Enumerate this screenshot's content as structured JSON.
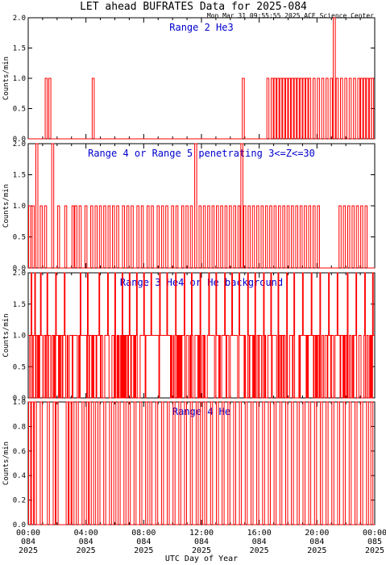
{
  "title": "LET ahead BUFRATES Data for 2025-084",
  "timestamp": "Mon Mar 31 09:55:55 2025 ACE Science Center",
  "xlabel": "UTC Day of Year",
  "colors": {
    "trace": "#ff0000",
    "label": "#0000cc",
    "axis": "#000000"
  },
  "x_ticks": [
    [
      "00:00",
      "084",
      "2025"
    ],
    [
      "04:00",
      "084",
      "2025"
    ],
    [
      "08:00",
      "084",
      "2025"
    ],
    [
      "12:00",
      "084",
      "2025"
    ],
    [
      "16:00",
      "084",
      "2025"
    ],
    [
      "20:00",
      "084",
      "2025"
    ],
    [
      "00:00",
      "085",
      "2025"
    ]
  ],
  "chart_data": [
    {
      "type": "line",
      "title": "Range 2 He3",
      "ylabel": "Counts/min",
      "ylim": [
        0,
        2.0
      ],
      "yticks": [
        "0.0",
        "0.5",
        "1.0",
        "1.5",
        "2.0"
      ],
      "xlim_hours": [
        0,
        24
      ],
      "nonzero": [
        [
          1.25,
          1
        ],
        [
          1.5,
          1
        ],
        [
          4.5,
          1
        ],
        [
          14.9,
          1
        ],
        [
          16.6,
          1
        ],
        [
          16.9,
          1
        ],
        [
          17.1,
          1
        ],
        [
          17.3,
          1
        ],
        [
          17.5,
          1
        ],
        [
          17.7,
          1
        ],
        [
          17.9,
          1
        ],
        [
          18.1,
          1
        ],
        [
          18.3,
          1
        ],
        [
          18.5,
          1
        ],
        [
          18.7,
          1
        ],
        [
          18.9,
          1
        ],
        [
          19.1,
          1
        ],
        [
          19.3,
          1
        ],
        [
          19.5,
          1
        ],
        [
          19.8,
          1
        ],
        [
          20.1,
          1
        ],
        [
          20.4,
          1
        ],
        [
          20.7,
          1
        ],
        [
          21.0,
          1
        ],
        [
          21.2,
          2
        ],
        [
          21.4,
          1
        ],
        [
          21.7,
          1
        ],
        [
          22.0,
          1
        ],
        [
          22.3,
          1
        ],
        [
          22.6,
          1
        ],
        [
          22.9,
          1
        ],
        [
          23.1,
          1
        ],
        [
          23.3,
          1
        ],
        [
          23.5,
          1
        ],
        [
          23.7,
          1
        ],
        [
          23.85,
          1
        ]
      ]
    },
    {
      "type": "line",
      "title": "Range 4 or Range 5 penetrating 3<=Z<=30",
      "ylabel": "Counts/min",
      "ylim": [
        0,
        2.0
      ],
      "yticks": [
        "0.0",
        "0.5",
        "1.0",
        "1.5",
        "2.0"
      ],
      "xlim_hours": [
        0,
        24
      ],
      "nonzero": [
        [
          0.1,
          1
        ],
        [
          0.35,
          1
        ],
        [
          0.6,
          2
        ],
        [
          0.9,
          1
        ],
        [
          1.2,
          1
        ],
        [
          1.7,
          2
        ],
        [
          2.1,
          1
        ],
        [
          2.6,
          1
        ],
        [
          3.1,
          1
        ],
        [
          3.3,
          1
        ],
        [
          3.6,
          1
        ],
        [
          4.0,
          1
        ],
        [
          4.4,
          1
        ],
        [
          4.7,
          1
        ],
        [
          5.0,
          1
        ],
        [
          5.3,
          1
        ],
        [
          5.6,
          1
        ],
        [
          5.9,
          1
        ],
        [
          6.2,
          1
        ],
        [
          6.6,
          1
        ],
        [
          6.9,
          1
        ],
        [
          7.2,
          1
        ],
        [
          7.6,
          1
        ],
        [
          7.9,
          1
        ],
        [
          8.3,
          1
        ],
        [
          8.6,
          1
        ],
        [
          9.0,
          1
        ],
        [
          9.3,
          1
        ],
        [
          9.6,
          1
        ],
        [
          10.0,
          1
        ],
        [
          10.3,
          1
        ],
        [
          10.7,
          1
        ],
        [
          11.0,
          1
        ],
        [
          11.3,
          1
        ],
        [
          11.6,
          2
        ],
        [
          11.9,
          1
        ],
        [
          12.2,
          1
        ],
        [
          12.5,
          1
        ],
        [
          12.8,
          1
        ],
        [
          13.1,
          1
        ],
        [
          13.4,
          1
        ],
        [
          13.7,
          1
        ],
        [
          14.0,
          1
        ],
        [
          14.3,
          1
        ],
        [
          14.6,
          1
        ],
        [
          14.8,
          2
        ],
        [
          15.0,
          1
        ],
        [
          15.3,
          1
        ],
        [
          15.6,
          1
        ],
        [
          15.9,
          1
        ],
        [
          16.2,
          1
        ],
        [
          16.5,
          1
        ],
        [
          16.8,
          1
        ],
        [
          17.1,
          1
        ],
        [
          17.4,
          1
        ],
        [
          17.7,
          1
        ],
        [
          18.0,
          1
        ],
        [
          18.3,
          1
        ],
        [
          18.6,
          1
        ],
        [
          18.9,
          1
        ],
        [
          19.2,
          1
        ],
        [
          19.5,
          1
        ],
        [
          19.8,
          1
        ],
        [
          20.1,
          1
        ],
        [
          21.6,
          1
        ],
        [
          21.9,
          1
        ],
        [
          22.2,
          1
        ],
        [
          22.5,
          1
        ],
        [
          22.8,
          1
        ],
        [
          23.1,
          1
        ],
        [
          23.4,
          1
        ]
      ]
    },
    {
      "type": "line",
      "title": "Range 3 He4 or He background",
      "ylabel": "Counts/min",
      "ylim": [
        0,
        2.0
      ],
      "yticks": [
        "0.0",
        "0.5",
        "1.0",
        "1.5",
        "2.0"
      ],
      "xlim_hours": [
        0,
        24
      ],
      "fill_level": 1,
      "zero_frac": 0.35,
      "peaks": [
        [
          0.2,
          2
        ],
        [
          0.45,
          2
        ],
        [
          0.85,
          2
        ],
        [
          1.3,
          2
        ],
        [
          1.9,
          2
        ],
        [
          2.5,
          2
        ],
        [
          3.6,
          2
        ],
        [
          4.1,
          2
        ],
        [
          4.9,
          2
        ],
        [
          5.5,
          2
        ],
        [
          6.0,
          2
        ],
        [
          6.5,
          2
        ],
        [
          7.0,
          2
        ],
        [
          7.5,
          2
        ],
        [
          8.0,
          2
        ],
        [
          8.5,
          2
        ],
        [
          9.1,
          2
        ],
        [
          9.6,
          2
        ],
        [
          10.2,
          2
        ],
        [
          10.8,
          2
        ],
        [
          11.3,
          2
        ],
        [
          11.9,
          2
        ],
        [
          12.5,
          2
        ],
        [
          13.0,
          2
        ],
        [
          13.6,
          2
        ],
        [
          14.1,
          2
        ],
        [
          14.6,
          2
        ],
        [
          15.2,
          2
        ],
        [
          15.7,
          2
        ],
        [
          16.3,
          2
        ],
        [
          16.8,
          2
        ],
        [
          17.3,
          2
        ],
        [
          17.9,
          2
        ],
        [
          18.4,
          2
        ],
        [
          19.0,
          2
        ],
        [
          19.6,
          2
        ],
        [
          20.2,
          2
        ],
        [
          20.8,
          2
        ],
        [
          21.4,
          2
        ],
        [
          22.1,
          2
        ],
        [
          22.7,
          2
        ],
        [
          23.3,
          2
        ],
        [
          23.85,
          2
        ]
      ]
    },
    {
      "type": "line",
      "title": "Range 4 He",
      "ylabel": "Counts/min",
      "ylim": [
        0,
        1.0
      ],
      "yticks": [
        "0.0",
        "0.2",
        "0.4",
        "0.6",
        "0.8",
        "1.0"
      ],
      "xlim_hours": [
        0,
        24
      ],
      "nonzero": [
        [
          0.1,
          1
        ],
        [
          0.3,
          1
        ],
        [
          0.5,
          1
        ],
        [
          0.9,
          1
        ],
        [
          1.4,
          1
        ],
        [
          1.8,
          1
        ],
        [
          2.0,
          1
        ],
        [
          2.7,
          1
        ],
        [
          2.9,
          1
        ],
        [
          3.1,
          1
        ],
        [
          3.4,
          1
        ],
        [
          3.8,
          1
        ],
        [
          4.1,
          1
        ],
        [
          4.3,
          1
        ],
        [
          4.6,
          1
        ],
        [
          4.9,
          1
        ],
        [
          5.3,
          1
        ],
        [
          5.7,
          1
        ],
        [
          6.0,
          1
        ],
        [
          6.3,
          1
        ],
        [
          6.7,
          1
        ],
        [
          7.0,
          1
        ],
        [
          7.4,
          1
        ],
        [
          7.8,
          1
        ],
        [
          8.2,
          1
        ],
        [
          8.5,
          1
        ],
        [
          8.9,
          1
        ],
        [
          9.3,
          1
        ],
        [
          9.7,
          1
        ],
        [
          10.1,
          1
        ],
        [
          10.5,
          1
        ],
        [
          10.9,
          1
        ],
        [
          11.3,
          1
        ],
        [
          11.7,
          1
        ],
        [
          12.0,
          1
        ],
        [
          12.3,
          1
        ],
        [
          12.7,
          1
        ],
        [
          13.1,
          1
        ],
        [
          13.5,
          1
        ],
        [
          13.9,
          1
        ],
        [
          14.3,
          1
        ],
        [
          14.7,
          1
        ],
        [
          15.1,
          1
        ],
        [
          15.5,
          1
        ],
        [
          15.9,
          1
        ],
        [
          16.3,
          1
        ],
        [
          16.7,
          1
        ],
        [
          17.1,
          1
        ],
        [
          17.5,
          1
        ],
        [
          17.9,
          1
        ],
        [
          18.3,
          1
        ],
        [
          18.7,
          1
        ],
        [
          19.1,
          1
        ],
        [
          19.5,
          1
        ],
        [
          19.9,
          1
        ],
        [
          20.3,
          1
        ],
        [
          20.7,
          1
        ],
        [
          21.1,
          1
        ],
        [
          21.5,
          1
        ],
        [
          21.9,
          1
        ],
        [
          22.3,
          1
        ],
        [
          22.7,
          1
        ],
        [
          23.1,
          1
        ],
        [
          23.5,
          1
        ],
        [
          23.8,
          1
        ]
      ]
    }
  ]
}
